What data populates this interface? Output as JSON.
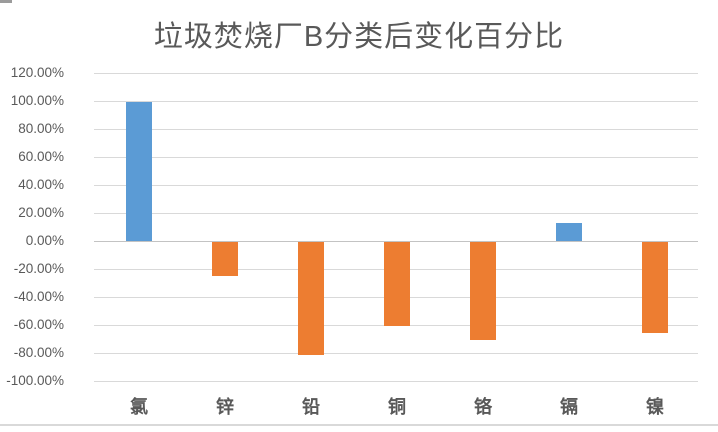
{
  "chart_data": {
    "type": "bar",
    "title": "垃圾焚烧厂B分类后变化百分比",
    "categories": [
      "氯",
      "锌",
      "铅",
      "铜",
      "铬",
      "镉",
      "镍"
    ],
    "values": [
      99,
      -24,
      -81,
      -60,
      -70,
      13,
      -65
    ],
    "unit": "%",
    "xlabel": "",
    "ylabel": "",
    "ylim": [
      -100,
      120
    ],
    "ytick_step": 20,
    "ytick_labels": [
      "120.00%",
      "100.00%",
      "80.00%",
      "60.00%",
      "40.00%",
      "20.00%",
      "0.00%",
      "-20.00%",
      "-40.00%",
      "-60.00%",
      "-80.00%",
      "-100.00%"
    ],
    "zero_tick_label": "0.00%",
    "grid": true,
    "legend": "none",
    "colors": {
      "positive": "#5B9BD5",
      "negative": "#ED7D31",
      "gridline": "#D9D9D9",
      "zero_line": "#C3C3C3",
      "title_text": "#595959",
      "axis_text": "#595959",
      "border": "#D9D9D9",
      "background": "#FFFFFF"
    }
  }
}
